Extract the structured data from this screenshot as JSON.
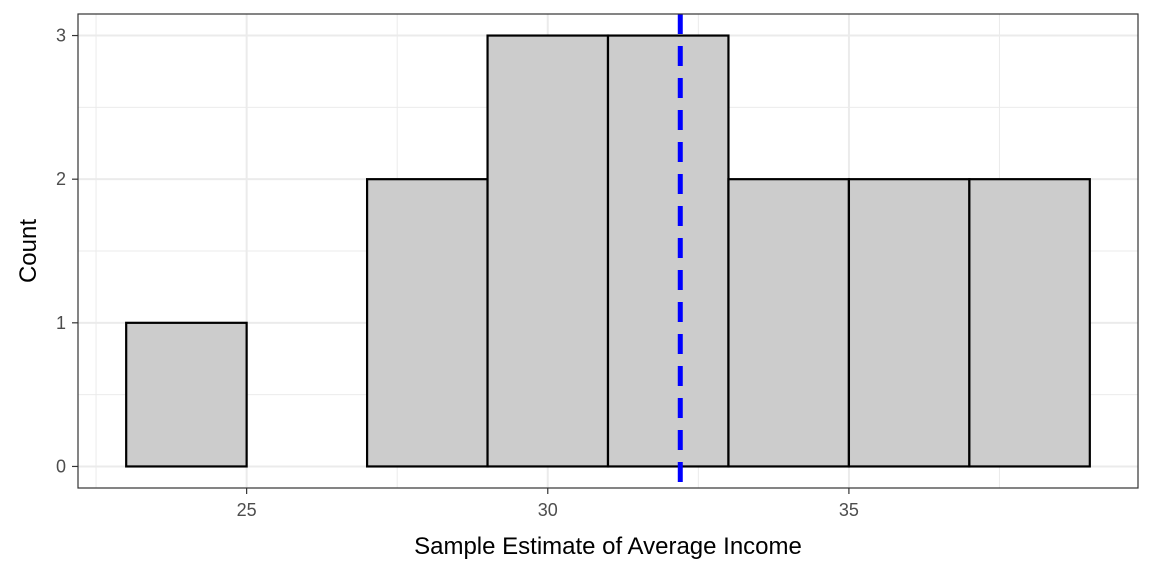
{
  "chart_data": {
    "type": "bar",
    "subtype": "histogram",
    "title": "",
    "xlabel": "Sample Estimate of Average Income",
    "ylabel": "Count",
    "bins": [
      {
        "start": 23,
        "end": 25,
        "count": 1
      },
      {
        "start": 25,
        "end": 27,
        "count": 0
      },
      {
        "start": 27,
        "end": 29,
        "count": 2
      },
      {
        "start": 29,
        "end": 31,
        "count": 3
      },
      {
        "start": 31,
        "end": 33,
        "count": 3
      },
      {
        "start": 33,
        "end": 35,
        "count": 2
      },
      {
        "start": 35,
        "end": 37,
        "count": 2
      },
      {
        "start": 37,
        "end": 39,
        "count": 2
      }
    ],
    "x_ticks": [
      25,
      30,
      35
    ],
    "x_tick_labels": [
      "25",
      "30",
      "35"
    ],
    "x_minor_ticks": [
      22.5,
      27.5,
      32.5,
      37.5
    ],
    "y_ticks": [
      0,
      1,
      2,
      3
    ],
    "y_tick_labels": [
      "0",
      "1",
      "2",
      "3"
    ],
    "y_minor_ticks": [
      0.5,
      1.5,
      2.5
    ],
    "xlim": [
      22.2,
      39.8
    ],
    "ylim": [
      -0.15,
      3.15
    ],
    "reference_line": {
      "x": 32.2,
      "style": "dashed",
      "color": "#0000ff"
    },
    "bar_fill": "#cccccc",
    "bar_stroke": "#000000",
    "grid": true,
    "grid_color": "#ebebeb",
    "legend": "none"
  }
}
